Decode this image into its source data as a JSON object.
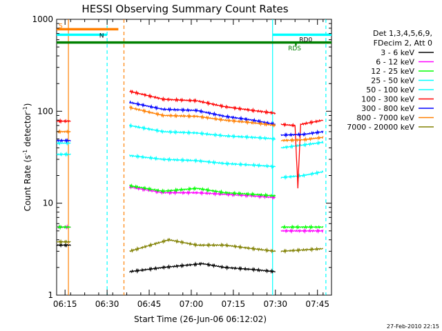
{
  "chart_data": {
    "type": "line",
    "title": "HESSI Observing Summary Count Rates",
    "xlabel": "Start Time (26-Jun-06 06:12:02)",
    "ylabel_main": "Count Rate (s",
    "ylabel_sup1": "-1",
    "ylabel_mid": " detector",
    "ylabel_sup2": "-1",
    "ylabel_end": ")",
    "yscale": "log",
    "ylim": [
      1,
      1000
    ],
    "xlim_minutes": [
      0,
      98
    ],
    "x_ticks": [
      {
        "label": "06:15",
        "t": 3
      },
      {
        "label": "06:30",
        "t": 18
      },
      {
        "label": "06:45",
        "t": 33
      },
      {
        "label": "07:00",
        "t": 48
      },
      {
        "label": "07:15",
        "t": 63
      },
      {
        "label": "07:30",
        "t": 78
      },
      {
        "label": "07:45",
        "t": 93
      }
    ],
    "y_ticks": [
      {
        "label": "1",
        "v": 1
      },
      {
        "label": "10",
        "v": 10
      },
      {
        "label": "100",
        "v": 100
      },
      {
        "label": "1000",
        "v": 1000
      }
    ],
    "legend_header": [
      "Det 1,3,4,5,6,9,",
      "FDecim 2, Att 0"
    ],
    "series": [
      {
        "name": "3 - 6 keV",
        "color": "#000000",
        "segments": [
          [
            [
              0,
              3.5
            ],
            [
              5,
              3.5
            ]
          ],
          [
            [
              26,
              1.8
            ],
            [
              38,
              2.0
            ],
            [
              52,
              2.2
            ],
            [
              60,
              2.0
            ],
            [
              70,
              1.9
            ],
            [
              78,
              1.8
            ]
          ]
        ]
      },
      {
        "name": "6 - 12 keV",
        "color": "#ff00ff",
        "segments": [
          [
            [
              0,
              5.5
            ],
            [
              5,
              5.5
            ]
          ],
          [
            [
              26,
              15
            ],
            [
              38,
              13
            ],
            [
              50,
              13
            ],
            [
              60,
              12.5
            ],
            [
              70,
              12
            ],
            [
              78,
              11.5
            ]
          ],
          [
            [
              80,
              5
            ],
            [
              95,
              5
            ]
          ]
        ]
      },
      {
        "name": "12 - 25 keV",
        "color": "#00ff00",
        "segments": [
          [
            [
              0,
              5.5
            ],
            [
              5,
              5.5
            ]
          ],
          [
            [
              26,
              15.5
            ],
            [
              38,
              13.5
            ],
            [
              50,
              14.5
            ],
            [
              60,
              13
            ],
            [
              70,
              12.5
            ],
            [
              78,
              12
            ]
          ],
          [
            [
              80,
              5.5
            ],
            [
              95,
              5.5
            ]
          ]
        ]
      },
      {
        "name": "25 - 50 keV",
        "color": "#00ffff",
        "segments": [
          [
            [
              0,
              34
            ],
            [
              5,
              34
            ]
          ],
          [
            [
              26,
              33
            ],
            [
              38,
              30
            ],
            [
              50,
              29
            ],
            [
              60,
              27
            ],
            [
              70,
              26
            ],
            [
              78,
              25
            ]
          ],
          [
            [
              80,
              19
            ],
            [
              88,
              20
            ],
            [
              95,
              22
            ]
          ]
        ]
      },
      {
        "name": "50 - 100 keV",
        "color": "#00ffff",
        "segments": [
          [
            [
              0,
              45
            ],
            [
              5,
              45
            ]
          ],
          [
            [
              26,
              70
            ],
            [
              38,
              60
            ],
            [
              50,
              58
            ],
            [
              60,
              54
            ],
            [
              70,
              52
            ],
            [
              78,
              50
            ]
          ],
          [
            [
              80,
              40
            ],
            [
              88,
              43
            ],
            [
              95,
              46
            ]
          ]
        ]
      },
      {
        "name": "100 - 300 keV",
        "color": "#ff0000",
        "segments": [
          [
            [
              0,
              78
            ],
            [
              5,
              78
            ]
          ],
          [
            [
              26,
              165
            ],
            [
              38,
              135
            ],
            [
              50,
              130
            ],
            [
              60,
              112
            ],
            [
              70,
              102
            ],
            [
              78,
              95
            ]
          ],
          [
            [
              80,
              72
            ],
            [
              85,
              70
            ],
            [
              86,
              15
            ],
            [
              87,
              72
            ],
            [
              95,
              80
            ]
          ]
        ]
      },
      {
        "name": "300 - 800 keV",
        "color": "#0000ff",
        "segments": [
          [
            [
              0,
              48
            ],
            [
              5,
              48
            ]
          ],
          [
            [
              26,
              125
            ],
            [
              38,
              105
            ],
            [
              50,
              102
            ],
            [
              60,
              88
            ],
            [
              70,
              80
            ],
            [
              78,
              72
            ]
          ],
          [
            [
              80,
              55
            ],
            [
              88,
              56
            ],
            [
              95,
              60
            ]
          ]
        ]
      },
      {
        "name": "800 - 7000 keV",
        "color": "#ff7f00",
        "segments": [
          [
            [
              0,
              60
            ],
            [
              5,
              60
            ]
          ],
          [
            [
              26,
              110
            ],
            [
              38,
              90
            ],
            [
              50,
              88
            ],
            [
              60,
              80
            ],
            [
              70,
              75
            ],
            [
              78,
              70
            ]
          ],
          [
            [
              80,
              48
            ],
            [
              88,
              49
            ],
            [
              95,
              52
            ]
          ]
        ]
      },
      {
        "name": "7000 - 20000 keV",
        "color": "#808000",
        "segments": [
          [
            [
              0,
              3.8
            ],
            [
              5,
              3.8
            ]
          ],
          [
            [
              26,
              3.0
            ],
            [
              40,
              4.0
            ],
            [
              50,
              3.5
            ],
            [
              60,
              3.5
            ],
            [
              70,
              3.2
            ],
            [
              78,
              3.0
            ]
          ],
          [
            [
              80,
              3.0
            ],
            [
              95,
              3.2
            ]
          ]
        ]
      }
    ],
    "flags": [
      {
        "label": "S",
        "color": "#ff7f00",
        "t0": 0,
        "t1": 22,
        "v": 780
      },
      {
        "label": "N",
        "color": "#00ffff",
        "t0": 0,
        "t1": 18,
        "v": 680
      },
      {
        "label": "RDS",
        "color": "#008000",
        "t0": 0,
        "t1": 98,
        "v": 560
      },
      {
        "label": "RDS",
        "color": "#008000",
        "t0": 85,
        "t1": 85.6,
        "v": 530
      },
      {
        "label": "RD0",
        "color": "#00ffff",
        "t0": 77,
        "t1": 98,
        "v": 680
      }
    ],
    "vlines": [
      {
        "t": 4.2,
        "color": "#ff7f00",
        "style": "solid"
      },
      {
        "t": 18,
        "color": "#00ffff",
        "style": "dashed"
      },
      {
        "t": 24,
        "color": "#ff7f00",
        "style": "dashed"
      },
      {
        "t": 77,
        "color": "#00ffff",
        "style": "solid"
      },
      {
        "t": 96,
        "color": "#00ffff",
        "style": "dashed"
      }
    ],
    "footer": "27-Feb-2010 22:15"
  }
}
